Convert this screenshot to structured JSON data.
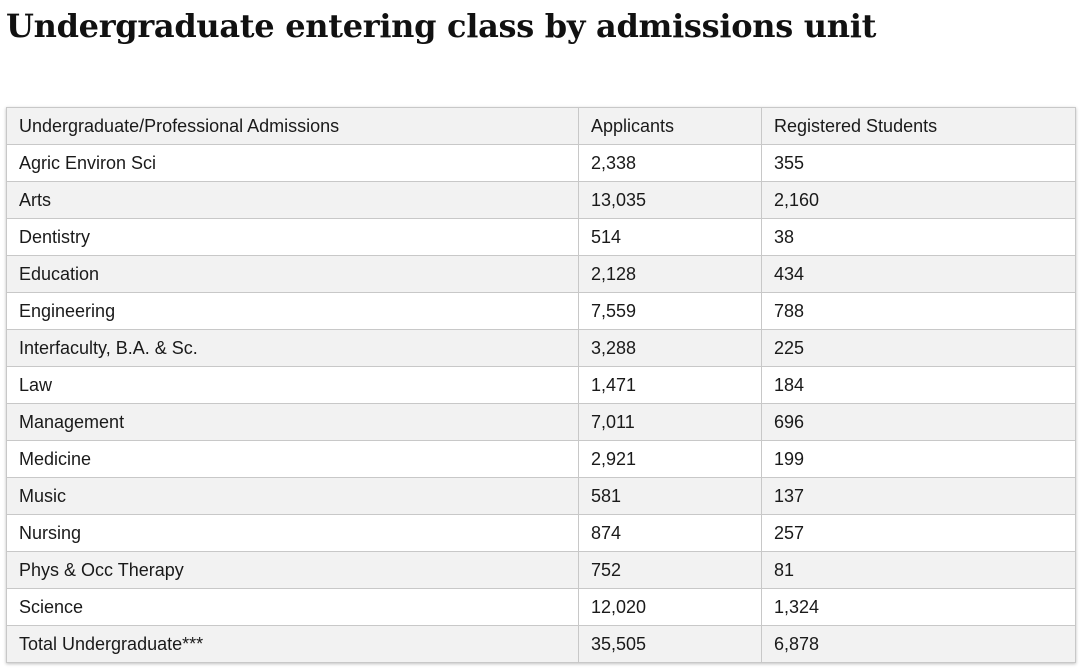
{
  "title": "Undergraduate entering class by admissions unit",
  "table": {
    "headers": [
      "Undergraduate/Professional Admissions",
      "Applicants",
      "Registered Students"
    ],
    "rows": [
      [
        "Agric Environ Sci",
        "2,338",
        "355"
      ],
      [
        "Arts",
        "13,035",
        "2,160"
      ],
      [
        "Dentistry",
        "514",
        "38"
      ],
      [
        "Education",
        "2,128",
        "434"
      ],
      [
        "Engineering",
        "7,559",
        "788"
      ],
      [
        "Interfaculty, B.A. & Sc.",
        "3,288",
        "225"
      ],
      [
        "Law",
        "1,471",
        "184"
      ],
      [
        "Management",
        "7,011",
        "696"
      ],
      [
        "Medicine",
        "2,921",
        "199"
      ],
      [
        "Music",
        "581",
        "137"
      ],
      [
        "Nursing",
        "874",
        "257"
      ],
      [
        "Phys & Occ Therapy",
        "752",
        "81"
      ],
      [
        "Science",
        "12,020",
        "1,324"
      ],
      [
        "Total Undergraduate***",
        "35,505",
        "6,878"
      ]
    ]
  }
}
